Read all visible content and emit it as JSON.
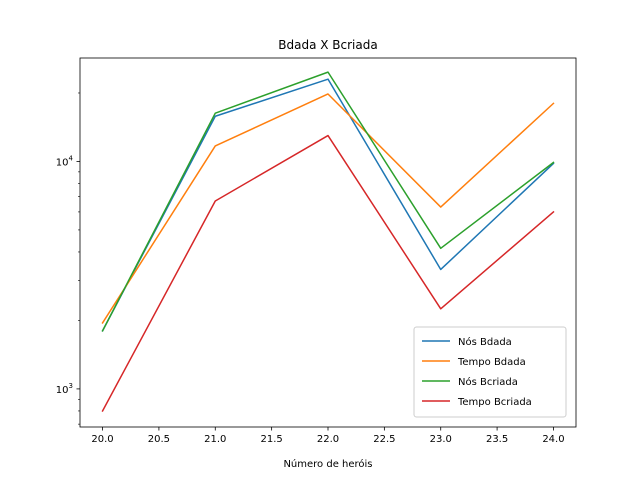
{
  "chart_data": {
    "type": "line",
    "title": "Bdada X Bcriada",
    "xlabel": "Número de heróis",
    "ylabel": "",
    "y_scale": "log",
    "grid": false,
    "legend_position": "lower-right",
    "xlim": [
      19.8,
      24.2
    ],
    "ylim": [
      680,
      28500
    ],
    "x": [
      20,
      21,
      22,
      23,
      24
    ],
    "x_ticks": [
      20.0,
      20.5,
      21.0,
      21.5,
      22.0,
      22.5,
      23.0,
      23.5,
      24.0
    ],
    "x_tick_labels": [
      "20.0",
      "20.5",
      "21.0",
      "21.5",
      "22.0",
      "22.5",
      "23.0",
      "23.5",
      "24.0"
    ],
    "y_ticks": [
      1000,
      10000
    ],
    "y_tick_labels": [
      {
        "base": "10",
        "exp": "3"
      },
      {
        "base": "10",
        "exp": "4"
      }
    ],
    "series": [
      {
        "name": "Nós Bdada",
        "color": "#1f77b4",
        "values": [
          1800,
          15800,
          23000,
          3350,
          9800
        ]
      },
      {
        "name": "Tempo Bdada",
        "color": "#ff7f0e",
        "values": [
          1950,
          11700,
          19800,
          6300,
          18000
        ]
      },
      {
        "name": "Nós Bcriada",
        "color": "#2ca02c",
        "values": [
          1800,
          16300,
          24700,
          4150,
          9900
        ]
      },
      {
        "name": "Tempo Bcriada",
        "color": "#d62728",
        "values": [
          800,
          6700,
          13000,
          2250,
          6000
        ]
      }
    ]
  }
}
